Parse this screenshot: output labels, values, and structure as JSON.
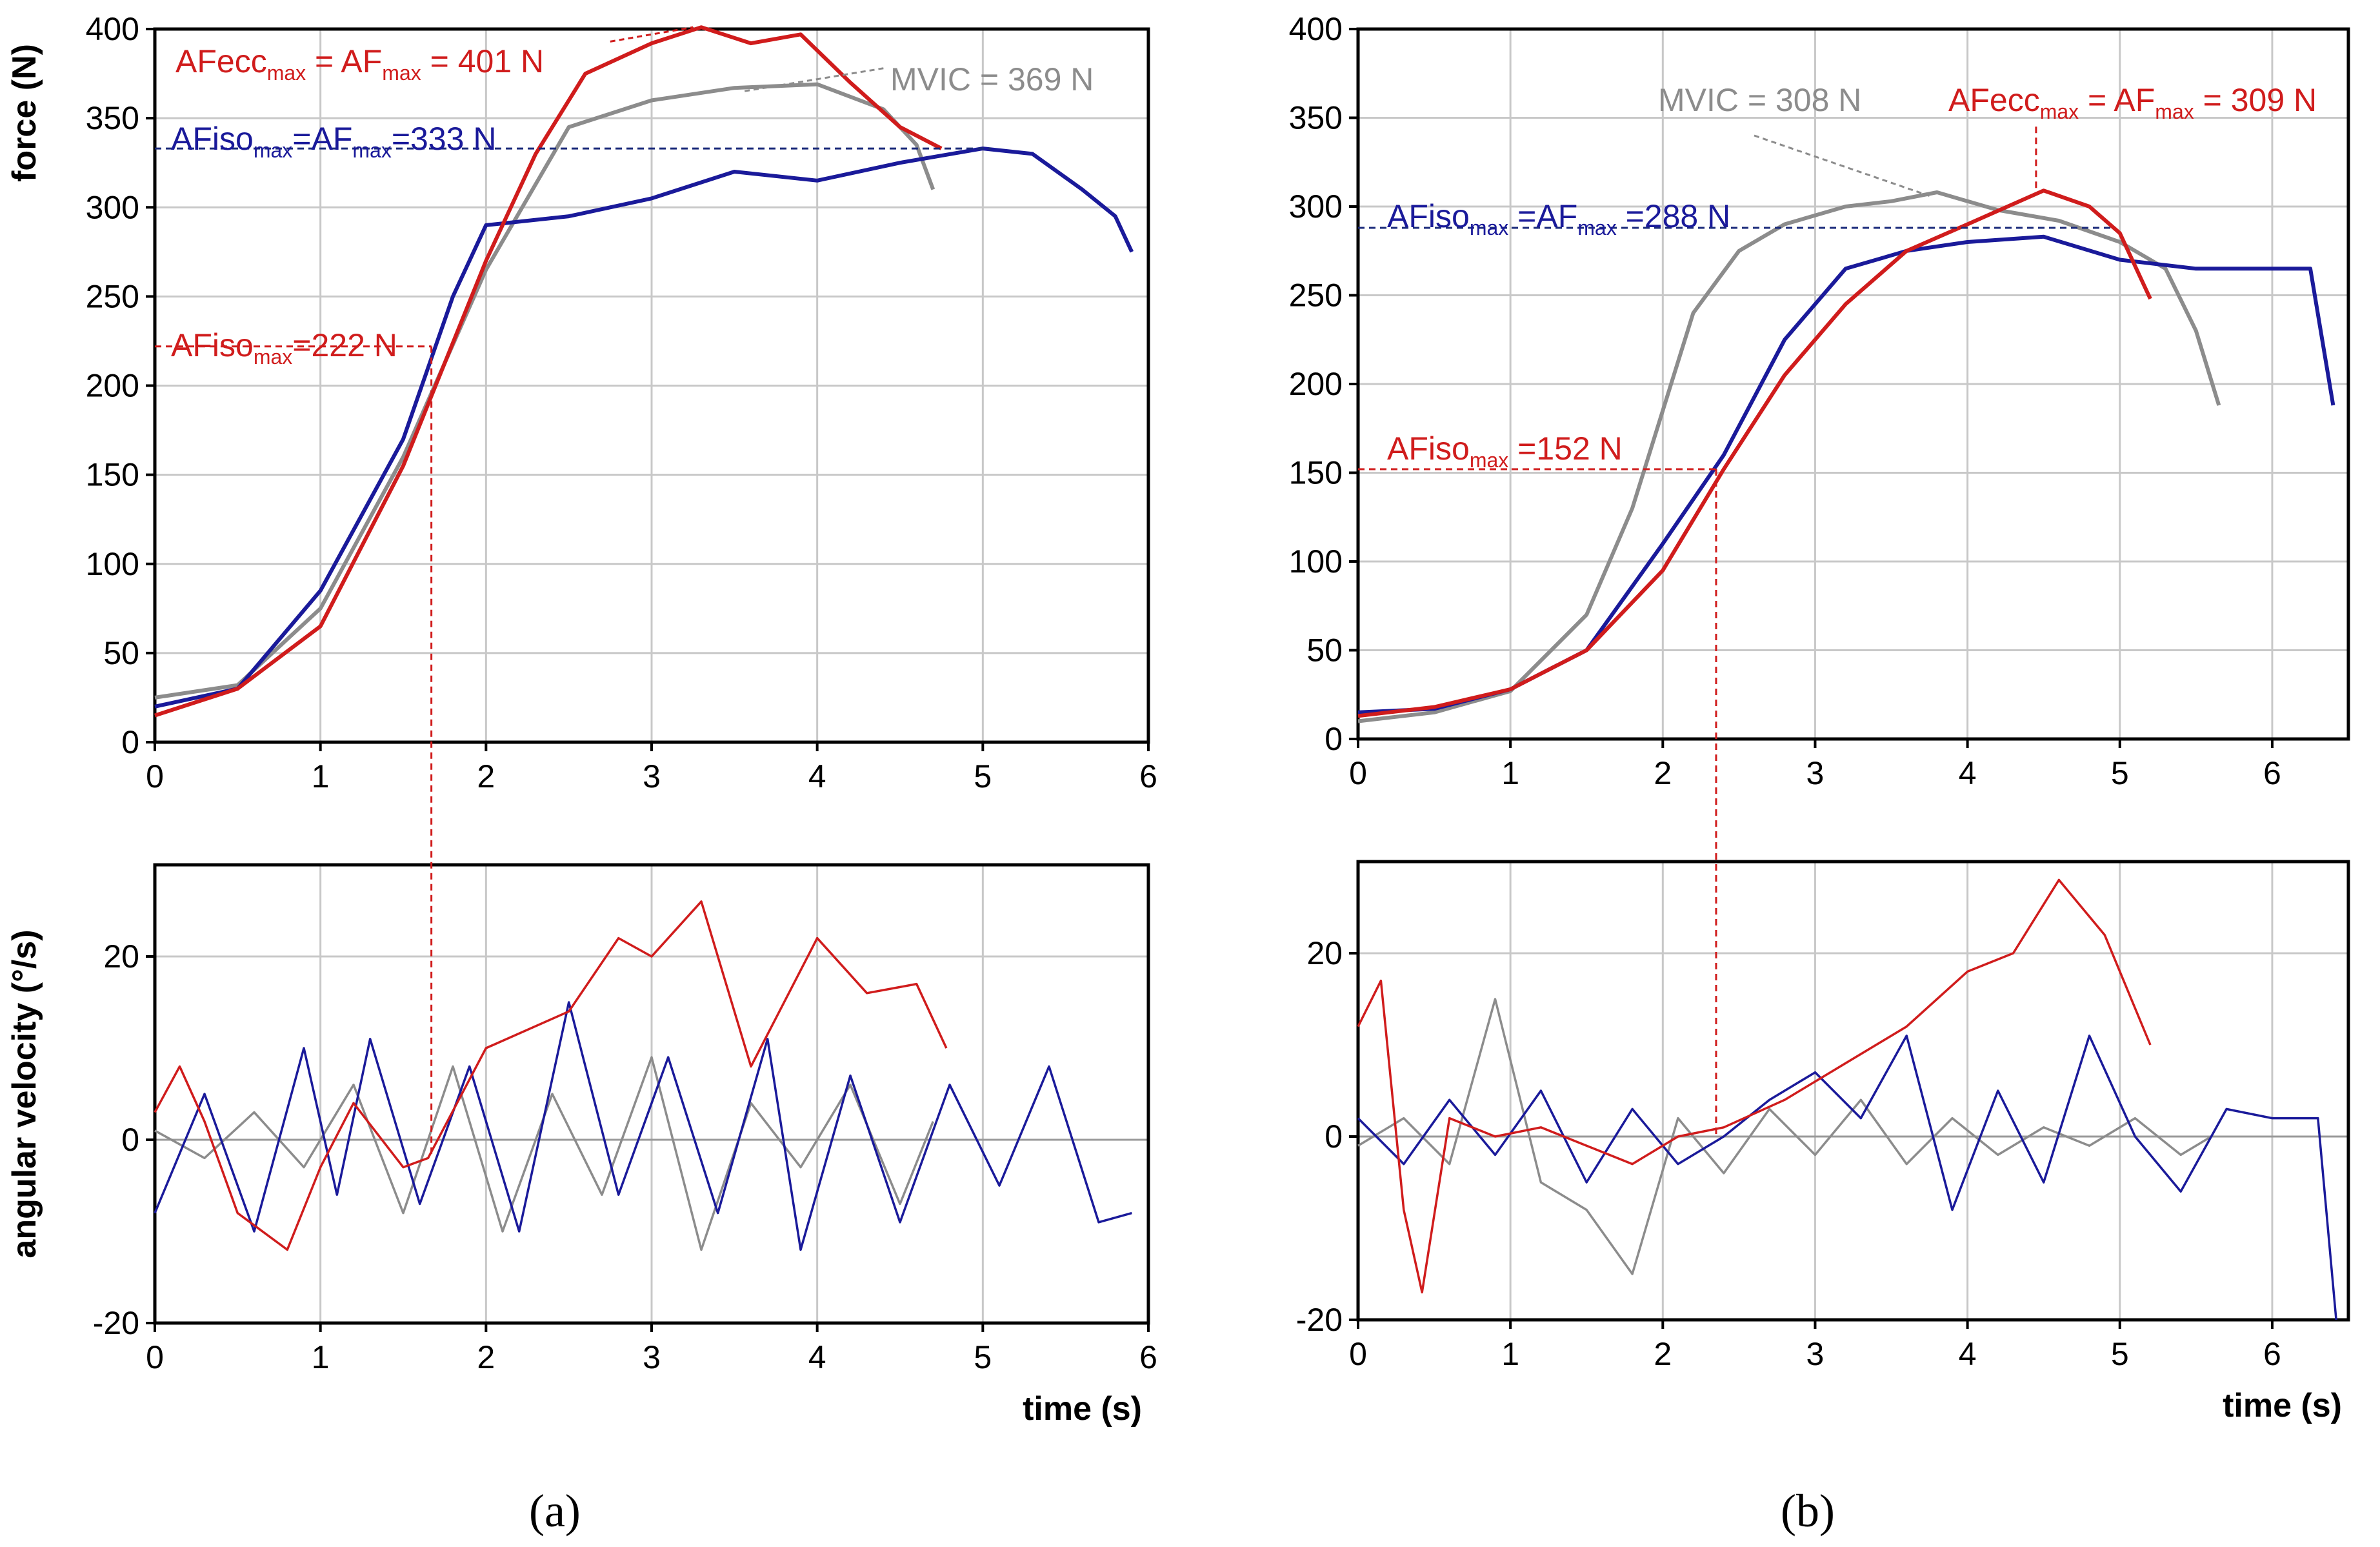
{
  "colors": {
    "afecc": "#d01c1c",
    "afiso": "#1a1a9a",
    "mvic": "#8c8c8c",
    "grid": "#c8c8c8",
    "ref_afiso_max": "#1a2a7a"
  },
  "chart_data": [
    {
      "panel": "a",
      "kind": "force",
      "type": "line",
      "ylabel": "force (N)",
      "xlabel": "",
      "xlim": [
        0,
        6
      ],
      "ylim": [
        0,
        400
      ],
      "xticks": [
        0,
        1,
        2,
        3,
        4,
        5,
        6
      ],
      "yticks": [
        0,
        50,
        100,
        150,
        200,
        250,
        300,
        350,
        400
      ],
      "series": [
        {
          "name": "AFecc",
          "color": "#d01c1c",
          "x": [
            0,
            0.5,
            1,
            1.5,
            2,
            2.3,
            2.6,
            3,
            3.3,
            3.6,
            3.9,
            4.2,
            4.5,
            4.75
          ],
          "y": [
            15,
            30,
            65,
            155,
            270,
            330,
            375,
            392,
            401,
            392,
            397,
            370,
            345,
            333
          ]
        },
        {
          "name": "AFiso",
          "color": "#1a1a9a",
          "x": [
            0,
            0.5,
            1,
            1.5,
            1.8,
            2,
            2.5,
            3,
            3.5,
            4,
            4.5,
            5,
            5.3,
            5.6,
            5.8,
            5.9
          ],
          "y": [
            20,
            30,
            85,
            170,
            250,
            290,
            295,
            305,
            320,
            315,
            325,
            333,
            330,
            310,
            295,
            275
          ]
        },
        {
          "name": "MVIC",
          "color": "#8c8c8c",
          "x": [
            0,
            0.5,
            1,
            1.5,
            2,
            2.5,
            3,
            3.5,
            4,
            4.4,
            4.6,
            4.7
          ],
          "y": [
            25,
            32,
            75,
            160,
            265,
            345,
            360,
            367,
            369,
            355,
            335,
            310
          ]
        }
      ],
      "annotations": [
        {
          "main": "AFecc",
          "sub": "max",
          "rest": " = AF",
          "sub2": "max",
          "rest2": " = 401 N",
          "color": "red"
        },
        {
          "main": "MVIC = 369 N",
          "color": "gray"
        },
        {
          "main": "AFiso",
          "sub": "max",
          "rest": "=AF",
          "sub2": "max",
          "rest2": "=333 N",
          "color": "blue"
        },
        {
          "main": "AFiso",
          "sub": "max",
          "rest": "=222 N",
          "color": "red"
        }
      ]
    },
    {
      "panel": "a",
      "kind": "velocity",
      "type": "line",
      "ylabel": "angular velocity (°/s)",
      "xlabel": "time (s)",
      "xlim": [
        0,
        6
      ],
      "ylim": [
        -20,
        30
      ],
      "xticks": [
        0,
        1,
        2,
        3,
        4,
        5,
        6
      ],
      "yticks": [
        -20,
        0,
        20
      ],
      "series": [
        {
          "name": "AFecc",
          "color": "#d01c1c",
          "x": [
            0,
            0.15,
            0.3,
            0.5,
            0.8,
            1,
            1.2,
            1.5,
            1.65,
            2,
            2.5,
            2.8,
            3,
            3.3,
            3.6,
            4,
            4.3,
            4.6,
            4.78
          ],
          "y": [
            3,
            8,
            2,
            -8,
            -12,
            -3,
            4,
            -3,
            -2,
            10,
            14,
            22,
            20,
            26,
            8,
            22,
            16,
            17,
            10
          ]
        },
        {
          "name": "AFiso",
          "color": "#1a1a9a",
          "x": [
            0,
            0.3,
            0.6,
            0.9,
            1.1,
            1.3,
            1.6,
            1.9,
            2.2,
            2.5,
            2.8,
            3.1,
            3.4,
            3.7,
            3.9,
            4.2,
            4.5,
            4.8,
            5.1,
            5.4,
            5.7,
            5.9
          ],
          "y": [
            -8,
            5,
            -10,
            10,
            -6,
            11,
            -7,
            8,
            -10,
            15,
            -6,
            9,
            -8,
            11,
            -12,
            7,
            -9,
            6,
            -5,
            8,
            -9,
            -8
          ]
        },
        {
          "name": "MVIC",
          "color": "#8c8c8c",
          "x": [
            0,
            0.3,
            0.6,
            0.9,
            1.2,
            1.5,
            1.8,
            2.1,
            2.4,
            2.7,
            3,
            3.3,
            3.6,
            3.9,
            4.2,
            4.5,
            4.7
          ],
          "y": [
            1,
            -2,
            3,
            -3,
            6,
            -8,
            8,
            -10,
            5,
            -6,
            9,
            -12,
            4,
            -3,
            6,
            -7,
            2
          ]
        }
      ]
    },
    {
      "panel": "b",
      "kind": "force",
      "type": "line",
      "ylabel": "",
      "xlabel": "",
      "xlim": [
        0,
        6.5
      ],
      "ylim": [
        0,
        400
      ],
      "xticks": [
        0,
        1,
        2,
        3,
        4,
        5,
        6
      ],
      "yticks": [
        0,
        50,
        100,
        150,
        200,
        250,
        300,
        350,
        400
      ],
      "series": [
        {
          "name": "AFecc",
          "color": "#d01c1c",
          "x": [
            0,
            0.5,
            1,
            1.5,
            2,
            2.4,
            2.8,
            3.2,
            3.6,
            4,
            4.5,
            4.8,
            5,
            5.2
          ],
          "y": [
            13,
            18,
            28,
            50,
            95,
            152,
            205,
            245,
            275,
            290,
            309,
            300,
            285,
            248
          ]
        },
        {
          "name": "AFiso",
          "color": "#1a1a9a",
          "x": [
            0,
            0.5,
            1,
            1.5,
            2,
            2.4,
            2.8,
            3.2,
            3.6,
            4,
            4.5,
            5,
            5.5,
            6,
            6.25,
            6.4
          ],
          "y": [
            15,
            17,
            28,
            50,
            110,
            160,
            225,
            265,
            275,
            280,
            283,
            270,
            265,
            265,
            265,
            188
          ]
        },
        {
          "name": "MVIC",
          "color": "#8c8c8c",
          "x": [
            0,
            0.5,
            1,
            1.5,
            1.8,
            2,
            2.2,
            2.5,
            2.8,
            3.2,
            3.5,
            3.8,
            4.2,
            4.6,
            5,
            5.3,
            5.5,
            5.65
          ],
          "y": [
            10,
            15,
            27,
            70,
            130,
            185,
            240,
            275,
            290,
            300,
            303,
            308,
            298,
            292,
            280,
            265,
            230,
            188
          ]
        }
      ],
      "annotations": [
        {
          "main": "MVIC = 308 N",
          "color": "gray"
        },
        {
          "main": "AFecc",
          "sub": "max",
          "rest": " = AF",
          "sub2": "max",
          "rest2": " = 309 N",
          "color": "red"
        },
        {
          "main": "AFiso",
          "sub": "max",
          "rest": " =AF",
          "sub2": "max",
          "rest2": " =288 N",
          "color": "blue"
        },
        {
          "main": "AFiso",
          "sub": "max",
          "rest": " =152 N",
          "color": "red"
        }
      ]
    },
    {
      "panel": "b",
      "kind": "velocity",
      "type": "line",
      "ylabel": "",
      "xlabel": "time (s)",
      "xlim": [
        0,
        6.5
      ],
      "ylim": [
        -20,
        30
      ],
      "xticks": [
        0,
        1,
        2,
        3,
        4,
        5,
        6
      ],
      "yticks": [
        -20,
        0,
        20
      ],
      "series": [
        {
          "name": "AFecc",
          "color": "#d01c1c",
          "x": [
            0,
            0.15,
            0.3,
            0.42,
            0.6,
            0.9,
            1.2,
            1.5,
            1.8,
            2.1,
            2.4,
            2.8,
            3.2,
            3.6,
            4,
            4.3,
            4.6,
            4.9,
            5.2
          ],
          "y": [
            12,
            17,
            -8,
            -17,
            2,
            0,
            1,
            -1,
            -3,
            0,
            1,
            4,
            8,
            12,
            18,
            20,
            28,
            22,
            10
          ]
        },
        {
          "name": "AFiso",
          "color": "#1a1a9a",
          "x": [
            0,
            0.3,
            0.6,
            0.9,
            1.2,
            1.5,
            1.8,
            2.1,
            2.4,
            2.7,
            3,
            3.3,
            3.6,
            3.9,
            4.2,
            4.5,
            4.8,
            5.1,
            5.4,
            5.7,
            6,
            6.3,
            6.42
          ],
          "y": [
            2,
            -3,
            4,
            -2,
            5,
            -5,
            3,
            -3,
            0,
            4,
            7,
            2,
            11,
            -8,
            5,
            -5,
            11,
            0,
            -6,
            3,
            2,
            2,
            -20
          ]
        },
        {
          "name": "MVIC",
          "color": "#8c8c8c",
          "x": [
            0,
            0.3,
            0.6,
            0.9,
            1.2,
            1.5,
            1.8,
            2.1,
            2.4,
            2.7,
            3,
            3.3,
            3.6,
            3.9,
            4.2,
            4.5,
            4.8,
            5.1,
            5.4,
            5.6
          ],
          "y": [
            -1,
            2,
            -3,
            15,
            -5,
            -8,
            -15,
            2,
            -4,
            3,
            -2,
            4,
            -3,
            2,
            -2,
            1,
            -1,
            2,
            -2,
            0
          ]
        }
      ]
    }
  ],
  "panel_labels": [
    "(a)",
    "(b)"
  ]
}
